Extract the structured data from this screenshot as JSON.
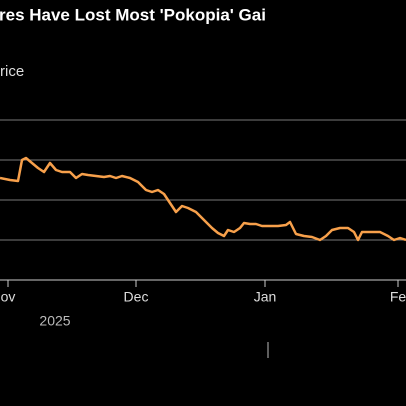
{
  "chart_data": {
    "type": "line",
    "title": "res Have Lost Most 'Pokopia' Gai",
    "subtitle": "rice",
    "year_label": "2025",
    "x": [
      0,
      2.5,
      4.5,
      5.5,
      6.5,
      8,
      9.5,
      11,
      12.5,
      14,
      15.5,
      17.5,
      19,
      20.5,
      22,
      24,
      26,
      27.5,
      29,
      30.5,
      32.5,
      34.5,
      36.5,
      38,
      39.5,
      41,
      42.5,
      44,
      45.5,
      47,
      49,
      51,
      53,
      54.5,
      56,
      57,
      58.5,
      60,
      61,
      62.5,
      64,
      65.5,
      67.5,
      69.5,
      71.5,
      72.5,
      74,
      76,
      78,
      80,
      81.5,
      83,
      85,
      87,
      88.5,
      89.5,
      90.5,
      92.5,
      95,
      97,
      98.5,
      100,
      101.5
    ],
    "series": [
      {
        "color": "#f7a04b",
        "values": [
          2.55,
          2.5,
          2.475,
          3,
          3.05,
          2.925,
          2.8,
          2.7,
          2.925,
          2.75,
          2.7,
          2.7,
          2.55,
          2.65,
          2.625,
          2.6,
          2.575,
          2.6,
          2.55,
          2.6,
          2.55,
          2.45,
          2.25,
          2.2,
          2.25,
          2.15,
          1.925,
          1.7,
          1.85,
          1.8,
          1.7,
          1.5,
          1.3,
          1.175,
          1.1,
          1.25,
          1.2,
          1.3,
          1.425,
          1.4,
          1.4,
          1.35,
          1.35,
          1.35,
          1.375,
          1.45,
          1.15,
          1.1,
          1.075,
          1,
          1.1,
          1.25,
          1.3,
          1.3,
          1.2,
          1,
          1.2,
          1.2,
          1.2,
          1.1,
          1,
          1.05,
          1
        ]
      }
    ],
    "xlim": [
      0,
      101.5
    ],
    "xticks": [
      {
        "value": 2,
        "label": "ov"
      },
      {
        "value": 34,
        "label": "Dec"
      },
      {
        "value": 66.25,
        "label": "Jan"
      },
      {
        "value": 99.5,
        "label": "Fe"
      }
    ],
    "ylim": [
      0,
      4
    ],
    "yticks": [
      0,
      1,
      2,
      3,
      4
    ],
    "grid": true
  }
}
